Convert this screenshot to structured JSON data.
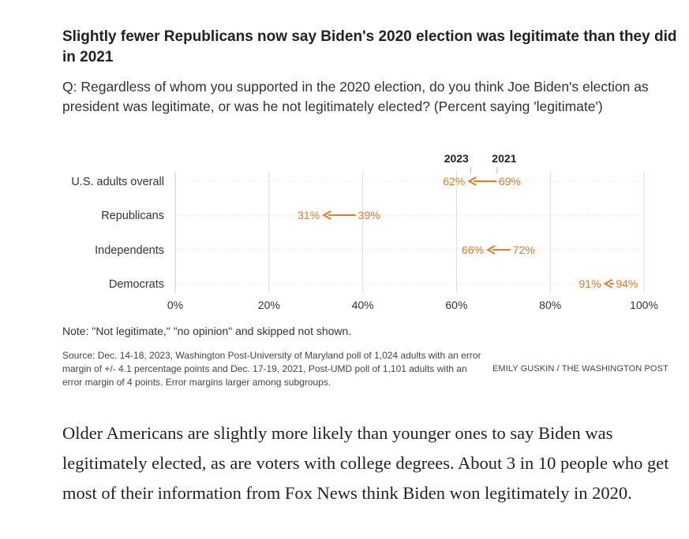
{
  "header": {
    "title": "Slightly fewer Republicans now say Biden's 2020 election was legitimate than they did in 2021",
    "question": "Q: Regardless of whom you supported in the 2020 election, do you think Joe Biden's election as president was legitimate, or was he not legitimately elected? (Percent saying 'legitimate')"
  },
  "chart_data": {
    "type": "dot-arrow",
    "title": "Slightly fewer Republicans now say Biden's 2020 election was legitimate than they did in 2021",
    "series_labels": [
      "2023",
      "2021"
    ],
    "categories": [
      "U.S. adults overall",
      "Republicans",
      "Independents",
      "Democrats"
    ],
    "series": [
      {
        "name": "2023",
        "values": [
          62,
          31,
          66,
          91
        ]
      },
      {
        "name": "2021",
        "values": [
          69,
          39,
          72,
          94
        ]
      }
    ],
    "value_labels": {
      "2023": [
        "62%",
        "31%",
        "66%",
        "91%"
      ],
      "2021": [
        "69%",
        "39%",
        "72%",
        "94%"
      ]
    },
    "xlim": [
      0,
      100
    ],
    "xticks": [
      0,
      20,
      40,
      60,
      80,
      100
    ],
    "xtick_labels": [
      "0%",
      "20%",
      "40%",
      "60%",
      "80%",
      "100%"
    ],
    "grid": true,
    "accent_color": "#e07b28"
  },
  "footer": {
    "note": "Note: \"Not legitimate,\" \"no opinion\" and skipped not shown.",
    "source": "Source: Dec. 14-18, 2023, Washington Post-University of Maryland poll of 1,024 adults with an error margin of +/- 4.1 percentage points and Dec. 17-19, 2021, Post-UMD poll of 1,101 adults with an error margin of 4 points. Error margins larger among subgroups.",
    "credit": "EMILY GUSKIN / THE WASHINGTON POST"
  },
  "article": {
    "paragraph": "Older Americans are slightly more likely than younger ones to say Biden was legitimately elected, as are voters with college degrees. About 3 in 10 people who get most of their information from Fox News think Biden won legitimately in 2020."
  }
}
